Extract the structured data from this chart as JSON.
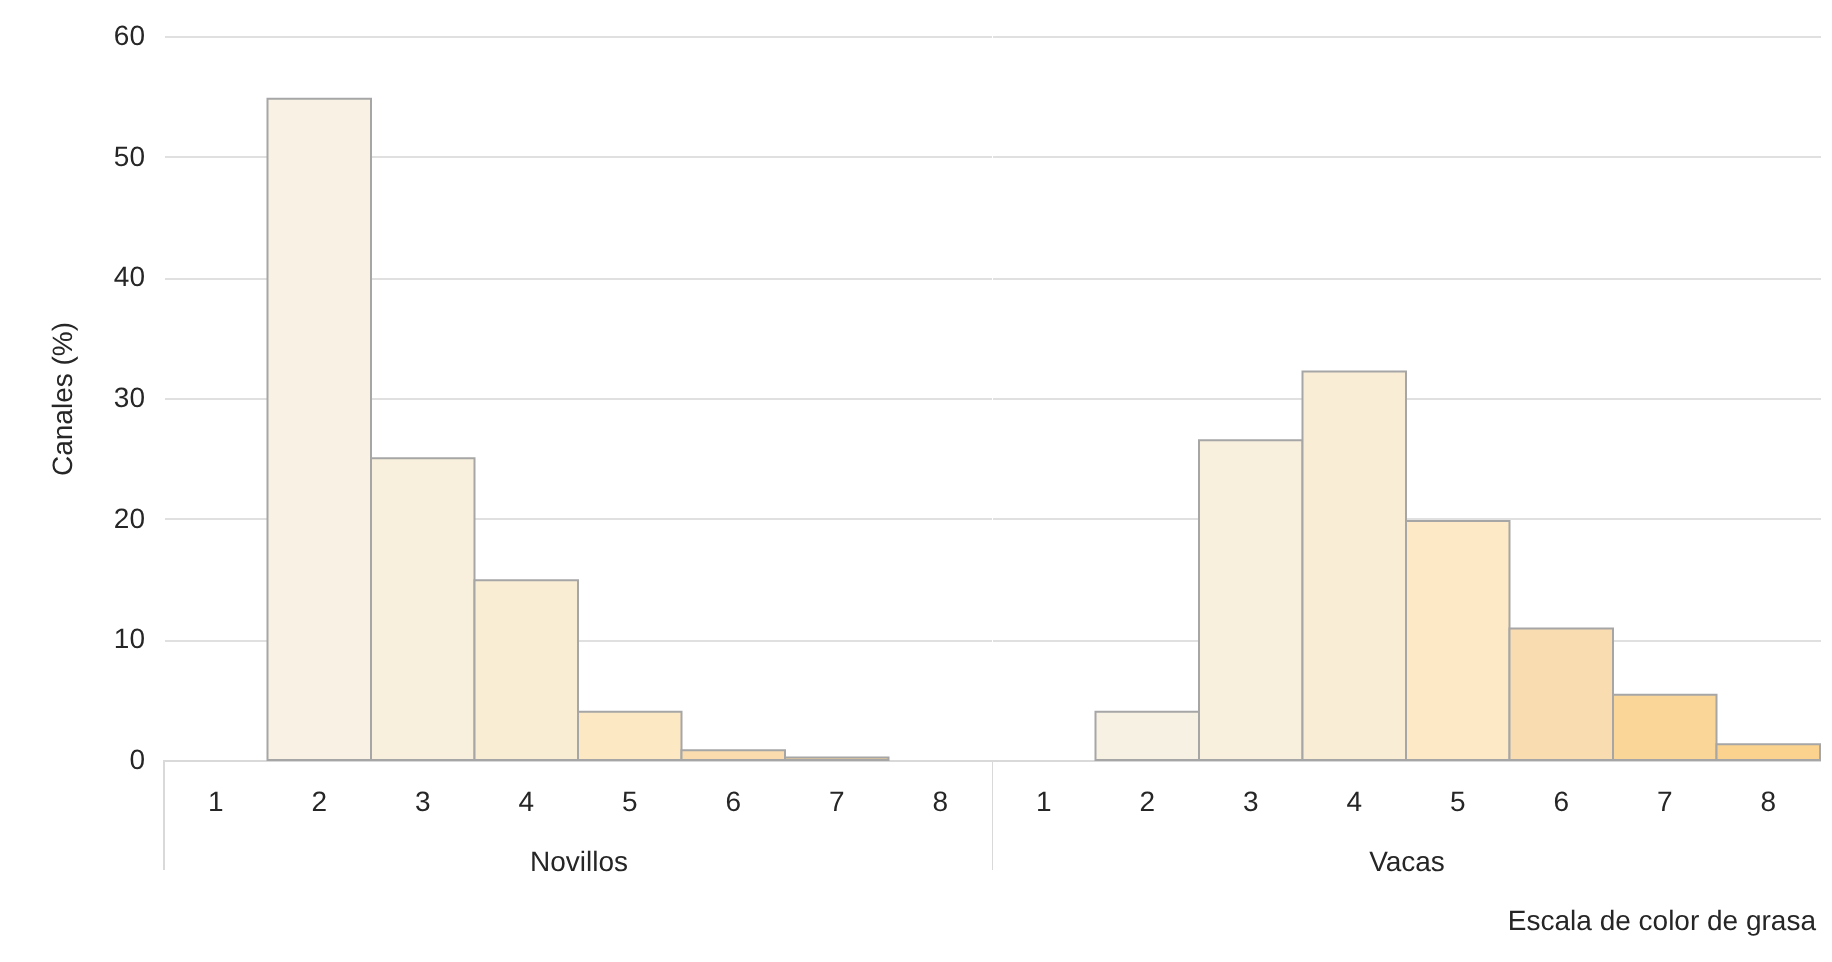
{
  "chart_data": [
    {
      "type": "bar",
      "ylabel": "Canales (%)",
      "xlabel": "Novillos",
      "categories": [
        "1",
        "2",
        "3",
        "4",
        "5",
        "6",
        "7",
        "8"
      ],
      "values": [
        null,
        54.8,
        25,
        14.9,
        4,
        0.8,
        0.2,
        null
      ],
      "colors": [
        null,
        "#f8f1e4",
        "#f8f0dc",
        "#f9edd3",
        "#fce8c3",
        "#fbdcae",
        "#fad699",
        null
      ],
      "ylim": [
        0,
        60
      ],
      "yticks": [
        0,
        10,
        20,
        30,
        40,
        50,
        60
      ],
      "grid": "y"
    },
    {
      "type": "bar",
      "xlabel": "Vacas",
      "categories": [
        "1",
        "2",
        "3",
        "4",
        "5",
        "6",
        "7",
        "8"
      ],
      "values": [
        null,
        4,
        26.5,
        32.2,
        19.8,
        10.9,
        5.4,
        1.3
      ],
      "colors": [
        null,
        "#f7f1e3",
        "#f8efdd",
        "#f9eed5",
        "#fde9c5",
        "#f9ddb0",
        "#fad699",
        "#fbd38f"
      ],
      "ylim": [
        0,
        60
      ],
      "yticks": [
        0,
        10,
        20,
        30,
        40,
        50,
        60
      ],
      "grid": "y",
      "tick_labels": "x",
      "annotations": [
        "Escala de color de grasa"
      ]
    }
  ]
}
